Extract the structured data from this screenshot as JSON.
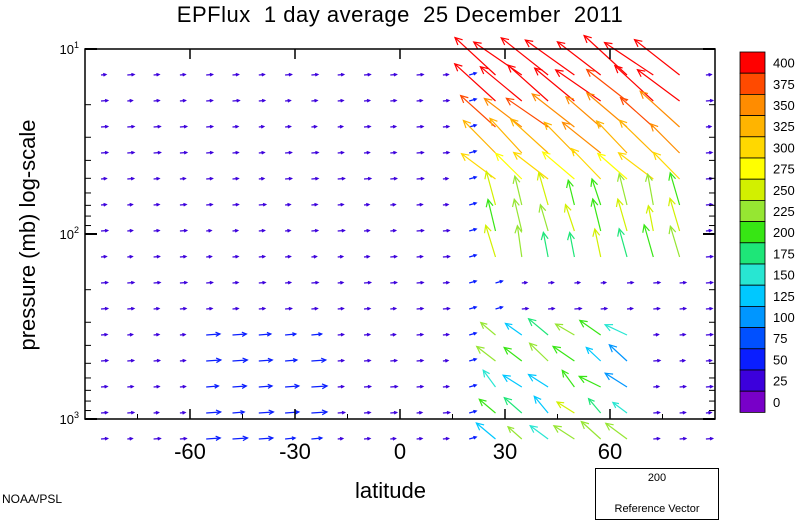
{
  "title": "EPFlux  1 day average  25 December  2011",
  "credit": "NOAA/PSL",
  "reference": {
    "value": "200",
    "label": "Reference Vector",
    "color": "#44ee66"
  },
  "chart_data": {
    "type": "vector-field",
    "xlabel": "latitude",
    "ylabel": "pressure (mb)  log-scale",
    "xlim": [
      -90,
      90
    ],
    "ylim": [
      1000,
      10
    ],
    "y_scale": "log",
    "x_ticks": [
      {
        "value": -60,
        "label": "-60"
      },
      {
        "value": -30,
        "label": "-30"
      },
      {
        "value": 0,
        "label": "0"
      },
      {
        "value": 30,
        "label": "30"
      },
      {
        "value": 60,
        "label": "60"
      }
    ],
    "y_ticks": [
      {
        "value": 10,
        "base": "10",
        "exp": "1"
      },
      {
        "value": 100,
        "base": "10",
        "exp": "2"
      },
      {
        "value": 1000,
        "base": "10",
        "exp": "3"
      }
    ],
    "colorbar": {
      "levels": [
        "400",
        "375",
        "350",
        "325",
        "300",
        "275",
        "250",
        "225",
        "200",
        "175",
        "150",
        "125",
        "100",
        "75",
        "50",
        "25",
        "0"
      ],
      "colors": [
        "#ff0000",
        "#ff4a00",
        "#ff8c00",
        "#ffb400",
        "#ffd800",
        "#ffff00",
        "#d2f000",
        "#96e632",
        "#37e614",
        "#1ee678",
        "#28e6d2",
        "#00c8ff",
        "#0096ff",
        "#0050ff",
        "#0a1eff",
        "#3c00dc",
        "#7800c8"
      ]
    }
  }
}
